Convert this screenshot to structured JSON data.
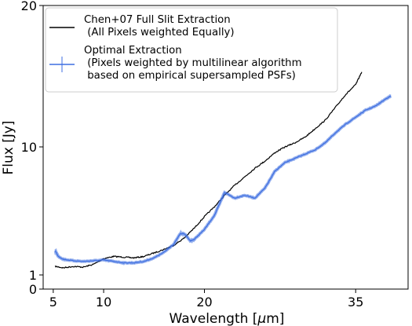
{
  "chart_data": {
    "type": "line",
    "title": "",
    "xlabel": "Wavelength [$\\mu$m]",
    "ylabel": "Flux [Jy]",
    "xlim": [
      4.0,
      40.2
    ],
    "ylim": [
      0,
      20
    ],
    "x_ticks": [
      5,
      10,
      20,
      35
    ],
    "y_ticks": [
      0,
      1,
      10,
      20
    ],
    "grid": false,
    "legend_position": "top-left",
    "legend": [
      "Chen+07 Full Slit Extraction\n (All Pixels weighted Equally)",
      "Optimal Extraction\n (Pixels weighted by multilinear algorithm\n based on empirical supersampled PSFs)"
    ],
    "series": [
      {
        "name": "Chen+07 Full Slit Extraction\n (All Pixels weighted Equally)",
        "color": "#000000",
        "x": [
          5.2,
          6.0,
          7.0,
          8.0,
          9.0,
          10.0,
          11.0,
          12.0,
          13.0,
          14.0,
          15.0,
          16.0,
          17.0,
          18.0,
          19.0,
          20.0,
          21.0,
          22.0,
          23.0,
          24.0,
          25.0,
          26.0,
          27.0,
          28.0,
          29.0,
          30.0,
          31.0,
          32.0,
          33.0,
          34.0,
          35.0,
          35.6
        ],
        "y": [
          1.6,
          1.5,
          1.6,
          1.55,
          1.75,
          2.15,
          2.3,
          2.25,
          2.2,
          2.3,
          2.55,
          2.8,
          3.1,
          3.6,
          4.3,
          5.1,
          5.8,
          6.6,
          7.3,
          7.9,
          8.5,
          9.0,
          9.6,
          10.0,
          10.3,
          10.7,
          11.3,
          11.9,
          12.8,
          13.7,
          14.4,
          15.3
        ]
      },
      {
        "name": "Optimal Extraction\n (Pixels weighted by multilinear algorithm\n based on empirical supersampled PSFs)",
        "color": "#3d6ee0",
        "x": [
          5.2,
          5.5,
          6.0,
          7.0,
          8.0,
          9.0,
          10.0,
          11.0,
          12.0,
          13.0,
          14.0,
          15.0,
          16.0,
          17.0,
          17.6,
          18.0,
          18.6,
          19.0,
          20.0,
          21.0,
          22.0,
          23.0,
          24.0,
          25.0,
          26.0,
          27.0,
          28.0,
          29.0,
          30.0,
          31.0,
          32.0,
          33.0,
          34.0,
          35.0,
          36.0,
          37.0,
          38.0,
          38.5
        ],
        "y": [
          2.7,
          2.3,
          2.1,
          2.0,
          1.95,
          2.0,
          2.05,
          1.95,
          1.85,
          1.85,
          1.95,
          2.2,
          2.6,
          3.2,
          3.9,
          3.9,
          3.4,
          3.5,
          4.2,
          5.2,
          6.8,
          6.4,
          6.6,
          6.4,
          7.1,
          8.3,
          8.9,
          9.2,
          9.5,
          9.8,
          10.3,
          11.0,
          11.6,
          12.1,
          12.6,
          12.9,
          13.4,
          13.6
        ]
      }
    ]
  }
}
